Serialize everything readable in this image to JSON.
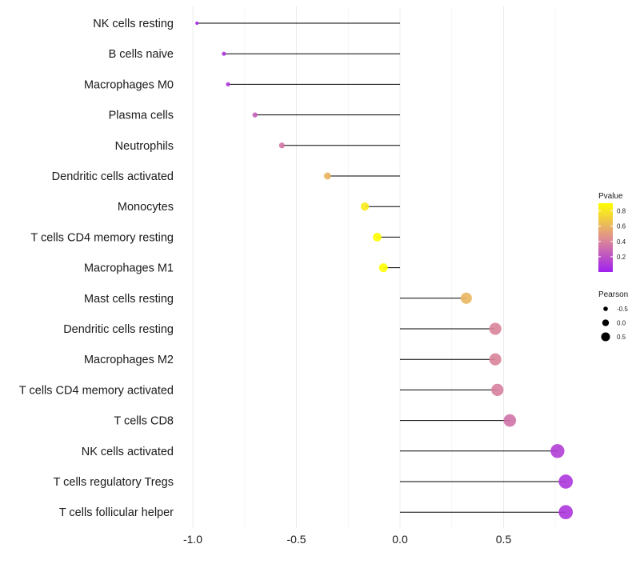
{
  "chart_data": {
    "type": "lollipop",
    "title": "",
    "xlabel": "",
    "ylabel": "",
    "xlim": [
      -1.0,
      0.8
    ],
    "x_ticks": [
      -1.0,
      -0.5,
      0.0,
      0.5
    ],
    "x_tick_labels": [
      "-1.0",
      "-0.5",
      "0.0",
      "0.5"
    ],
    "categories": [
      "NK cells resting",
      "B cells naive",
      "Macrophages M0",
      "Plasma cells",
      "Neutrophils",
      "Dendritic cells activated",
      "Monocytes",
      "T cells CD4 memory resting",
      "Macrophages M1",
      "Mast cells resting",
      "Dendritic cells resting",
      "Macrophages M2",
      "T cells CD4 memory activated",
      "T cells CD8",
      "NK cells activated",
      "T cells regulatory  Tregs",
      "T cells follicular helper"
    ],
    "pearson": [
      -0.98,
      -0.85,
      -0.83,
      -0.7,
      -0.57,
      -0.35,
      -0.17,
      -0.11,
      -0.08,
      0.32,
      0.46,
      0.46,
      0.47,
      0.53,
      0.76,
      0.8,
      0.8
    ],
    "pvalue": [
      0.02,
      0.08,
      0.1,
      0.25,
      0.35,
      0.6,
      0.82,
      0.9,
      0.93,
      0.6,
      0.4,
      0.4,
      0.38,
      0.33,
      0.12,
      0.09,
      0.09
    ],
    "color_legend": {
      "title": "Pvalue",
      "ticks": [
        0.8,
        0.6,
        0.4,
        0.2
      ],
      "tick_labels": [
        "0.8",
        "0.6",
        "0.4",
        "0.2"
      ],
      "range": [
        0.0,
        0.9
      ],
      "low_color": "#a020f0",
      "mid_color": "#e0908f",
      "high_color": "#ffff00"
    },
    "size_legend": {
      "title": "Pearson",
      "values": [
        -0.5,
        0.0,
        0.5
      ],
      "labels": [
        "-0.5",
        "0.0",
        "0.5"
      ]
    },
    "grid": true,
    "legend_position": "right"
  }
}
